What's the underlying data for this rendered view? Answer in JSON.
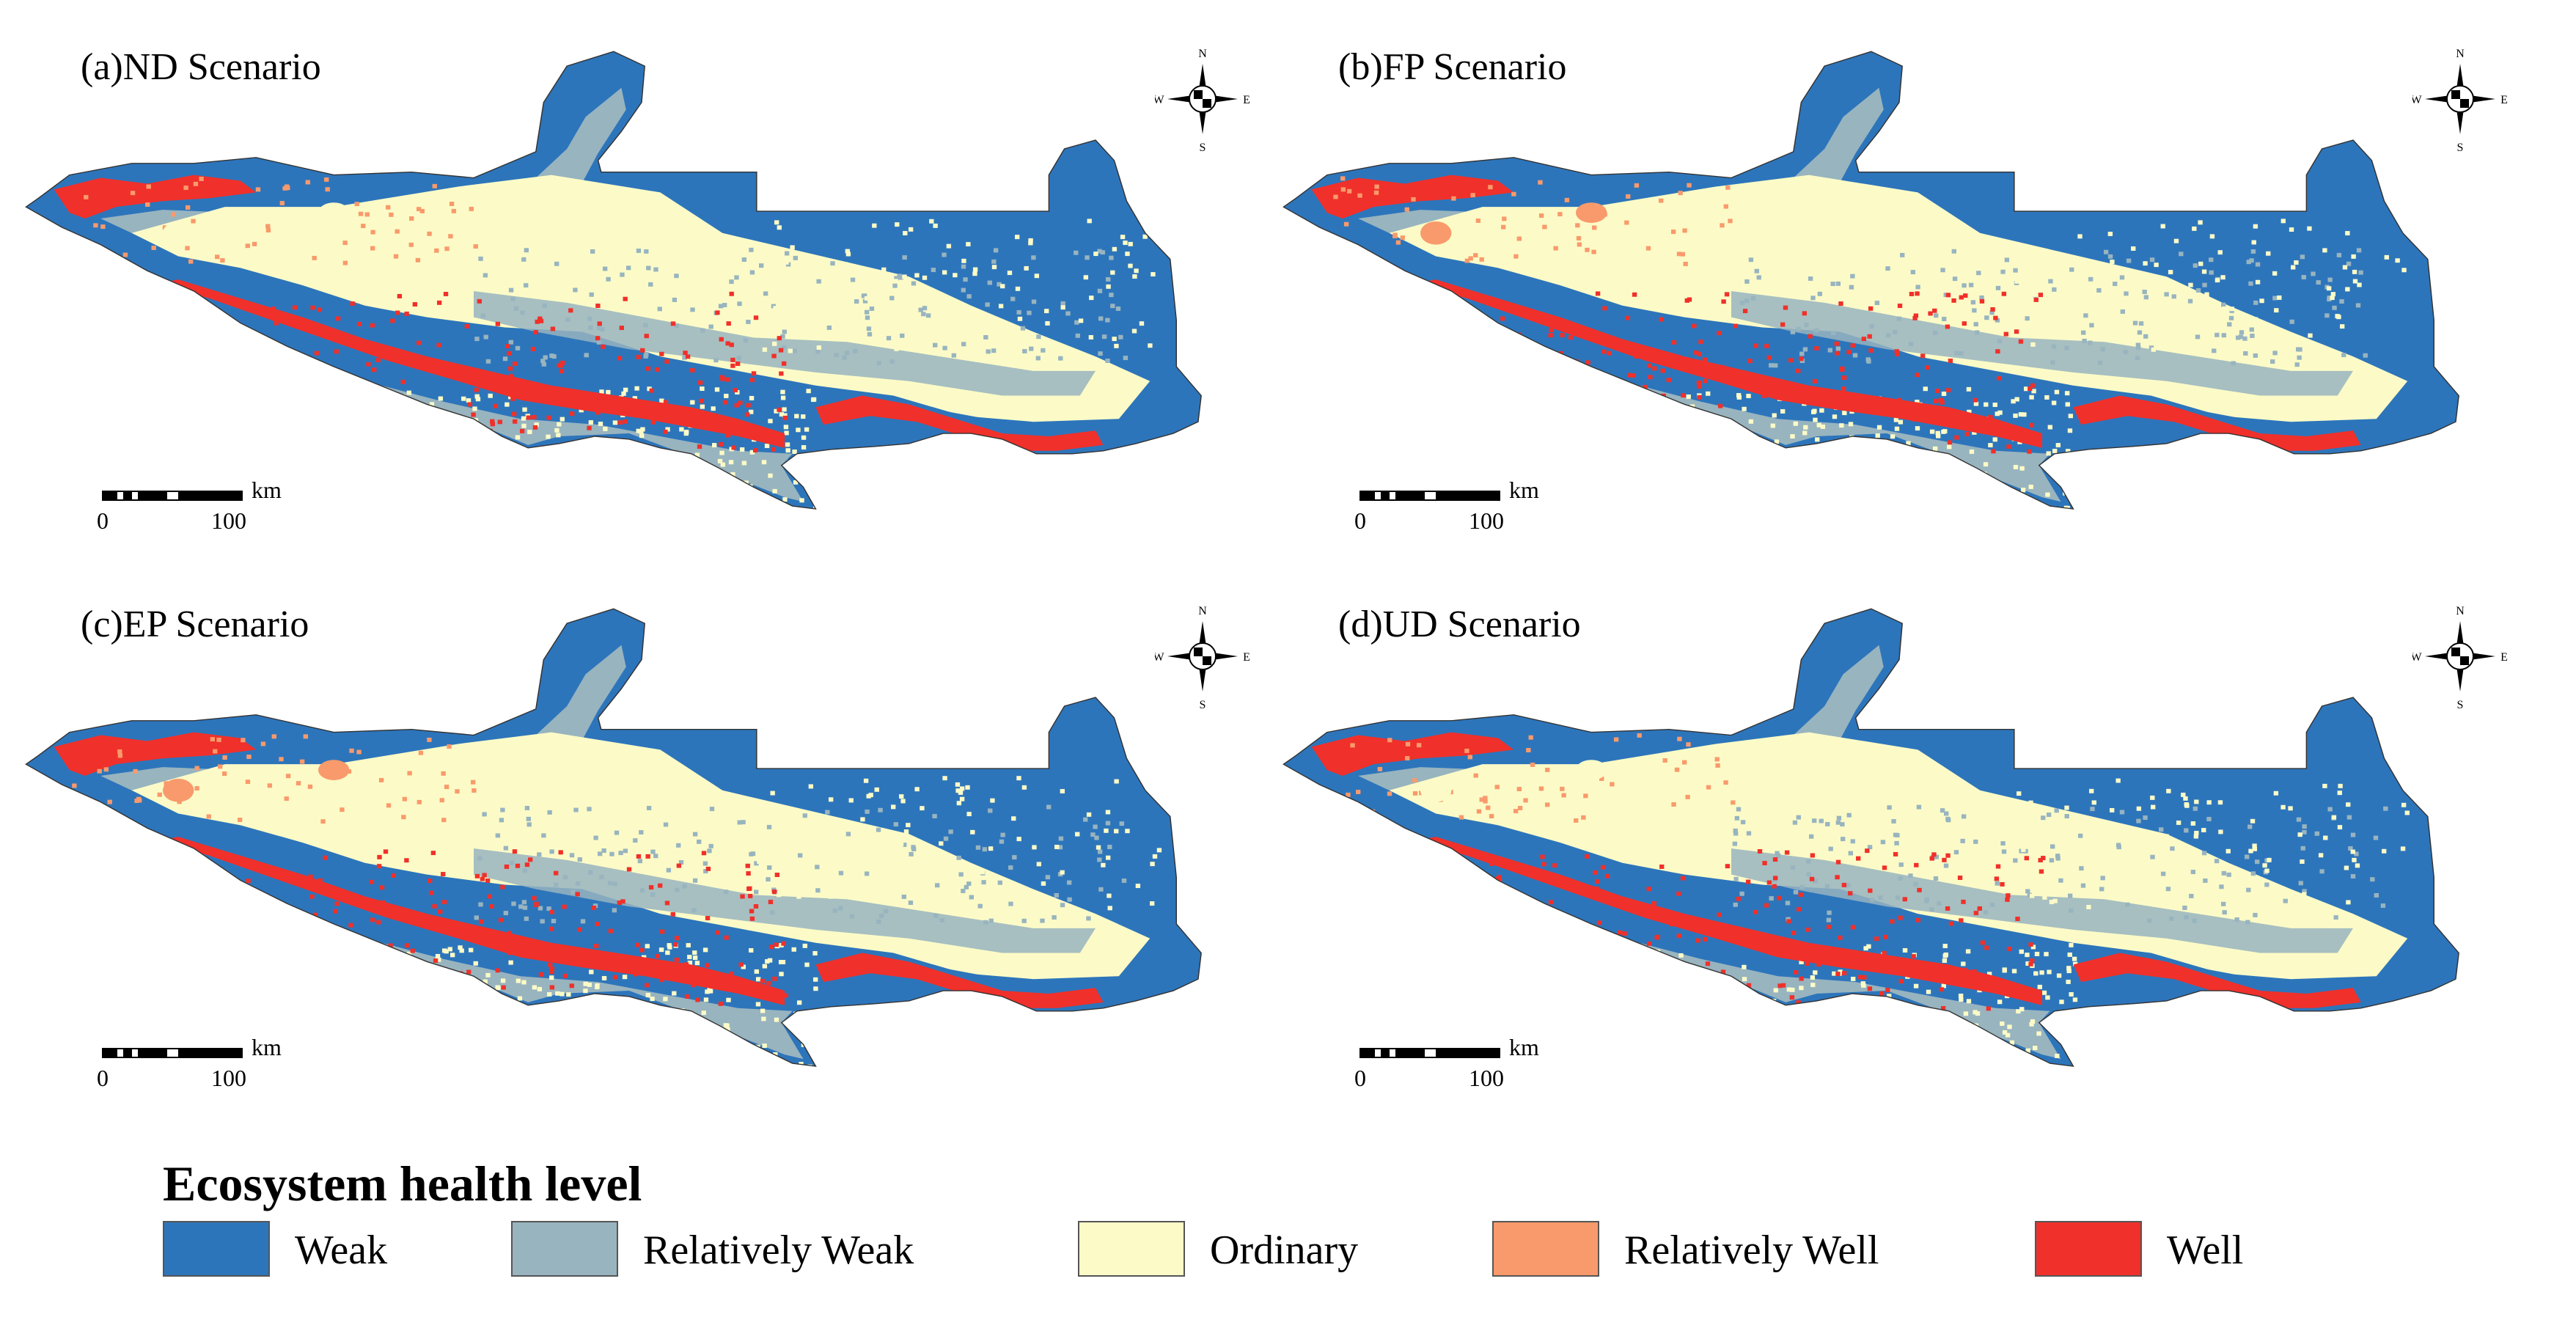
{
  "panels": [
    {
      "title": "(a)ND Scenario",
      "orchard_patch_class": "Ordinary",
      "west_patch_class": "Ordinary"
    },
    {
      "title": "(b)FP Scenario",
      "orchard_patch_class": "Relatively Well",
      "west_patch_class": "Relatively Well"
    },
    {
      "title": "(c)EP Scenario",
      "orchard_patch_class": "Relatively Well",
      "west_patch_class": "Relatively Well"
    },
    {
      "title": "(d)UD Scenario",
      "orchard_patch_class": "Ordinary",
      "west_patch_class": "Ordinary"
    }
  ],
  "compass": {
    "north": "N",
    "south": "S",
    "east": "E",
    "west": "W"
  },
  "scale_bar": {
    "unit": "km",
    "start": "0",
    "end": "100"
  },
  "legend": {
    "title": "Ecosystem health level",
    "items": [
      {
        "label": "Weak",
        "color": "#2d75bb"
      },
      {
        "label": "Relatively Weak",
        "color": "#98b4bf"
      },
      {
        "label": "Ordinary",
        "color": "#fcfbc7"
      },
      {
        "label": "Relatively Well",
        "color": "#f99a6c"
      },
      {
        "label": "Well",
        "color": "#f0302a"
      }
    ]
  }
}
